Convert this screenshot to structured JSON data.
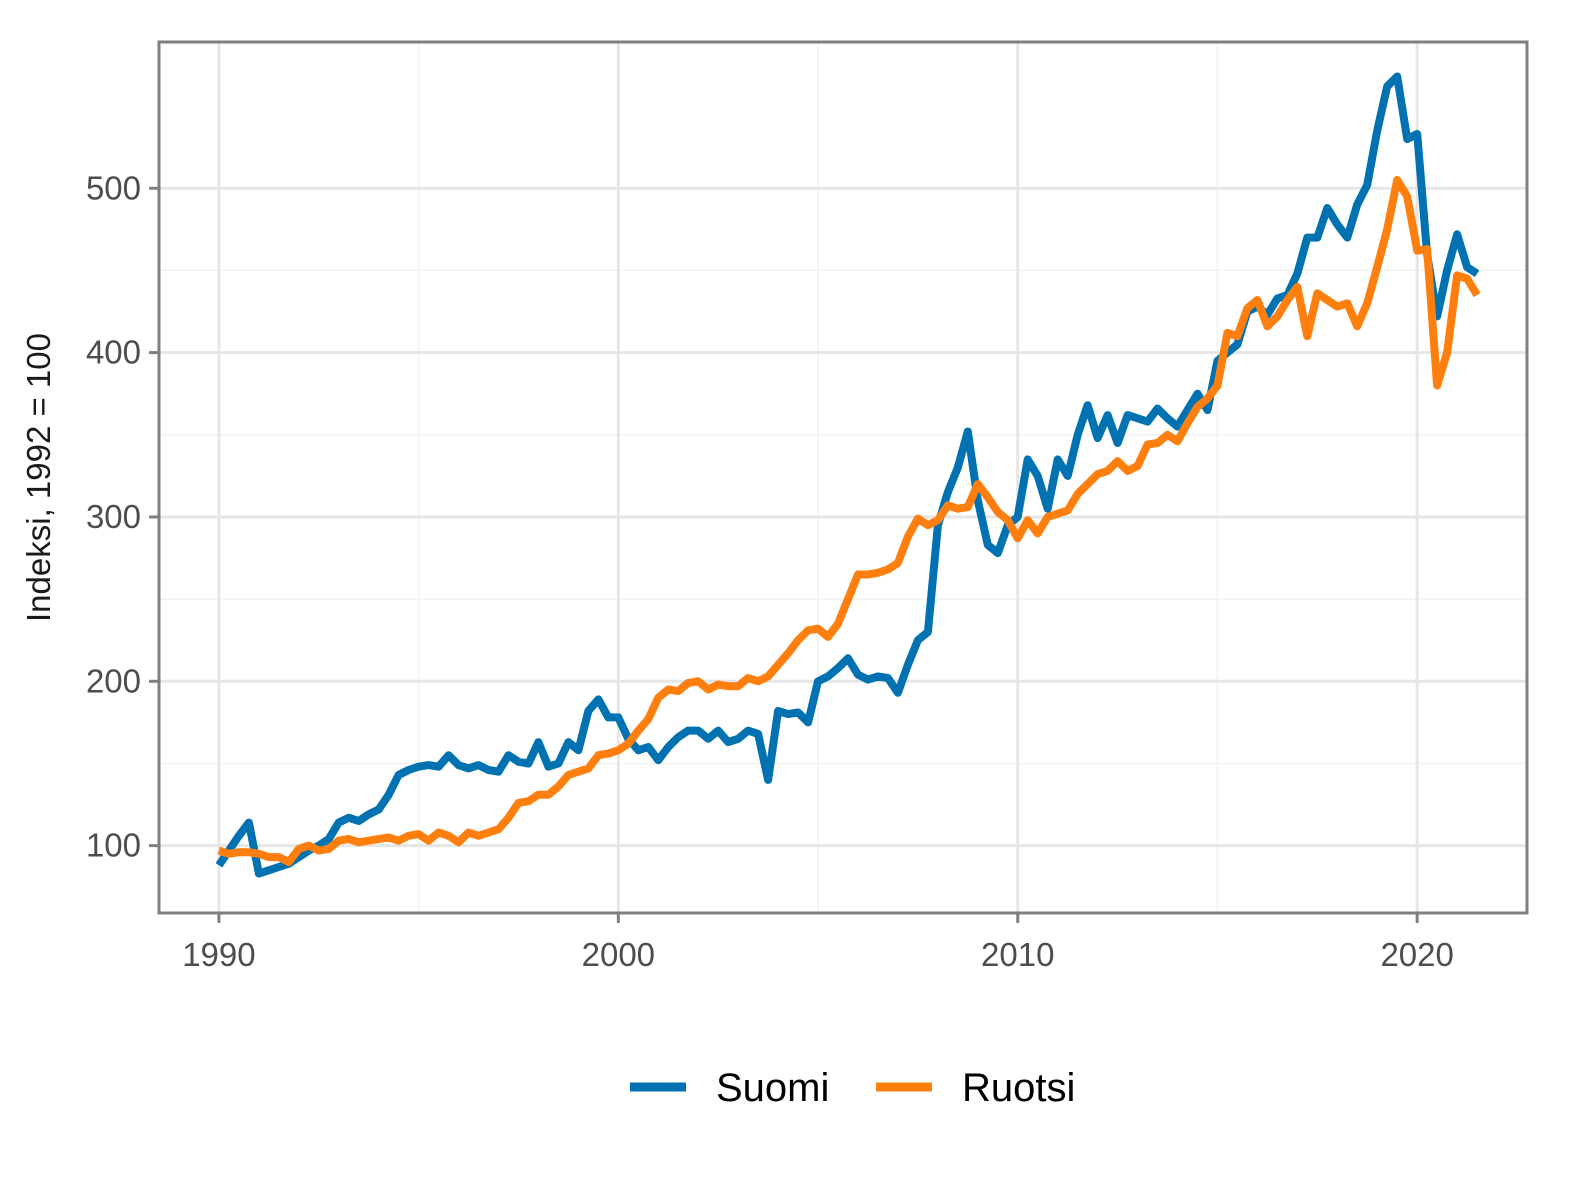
{
  "chart_data": {
    "type": "line",
    "title": "",
    "xlabel": "",
    "ylabel": "Indeksi, 1992 = 100",
    "xlim": [
      1988.5,
      2022.75
    ],
    "ylim": [
      59,
      589
    ],
    "x_ticks": [
      1990,
      2000,
      2010,
      2020
    ],
    "x_tick_labels": [
      "1990",
      "2000",
      "2010",
      "2020"
    ],
    "y_ticks": [
      100,
      200,
      300,
      400,
      500
    ],
    "y_tick_labels": [
      "100",
      "200",
      "300",
      "400",
      "500"
    ],
    "grid": true,
    "legend_position": "bottom",
    "series": [
      {
        "name": "Suomi",
        "color": "#0072B2",
        "points": [
          [
            1990.0,
            88
          ],
          [
            1990.25,
            97
          ],
          [
            1990.5,
            106
          ],
          [
            1990.75,
            114
          ],
          [
            1991.0,
            83
          ],
          [
            1991.25,
            85
          ],
          [
            1991.5,
            87
          ],
          [
            1991.75,
            89
          ],
          [
            1992.0,
            93
          ],
          [
            1992.25,
            97
          ],
          [
            1992.5,
            100
          ],
          [
            1992.75,
            104
          ],
          [
            1993.0,
            114
          ],
          [
            1993.25,
            117
          ],
          [
            1993.5,
            115
          ],
          [
            1993.75,
            119
          ],
          [
            1994.0,
            122
          ],
          [
            1994.25,
            131
          ],
          [
            1994.5,
            143
          ],
          [
            1994.75,
            146
          ],
          [
            1995.0,
            148
          ],
          [
            1995.25,
            149
          ],
          [
            1995.5,
            148
          ],
          [
            1995.75,
            155
          ],
          [
            1996.0,
            149
          ],
          [
            1996.25,
            147
          ],
          [
            1996.5,
            149
          ],
          [
            1996.75,
            146
          ],
          [
            1997.0,
            145
          ],
          [
            1997.25,
            155
          ],
          [
            1997.5,
            151
          ],
          [
            1997.75,
            150
          ],
          [
            1998.0,
            163
          ],
          [
            1998.25,
            148
          ],
          [
            1998.5,
            150
          ],
          [
            1998.75,
            163
          ],
          [
            1999.0,
            158
          ],
          [
            1999.25,
            182
          ],
          [
            1999.5,
            189
          ],
          [
            1999.75,
            178
          ],
          [
            2000.0,
            178
          ],
          [
            2000.25,
            165
          ],
          [
            2000.5,
            158
          ],
          [
            2000.75,
            160
          ],
          [
            2001.0,
            152
          ],
          [
            2001.25,
            160
          ],
          [
            2001.5,
            166
          ],
          [
            2001.75,
            170
          ],
          [
            2002.0,
            170
          ],
          [
            2002.25,
            165
          ],
          [
            2002.5,
            170
          ],
          [
            2002.75,
            163
          ],
          [
            2003.0,
            165
          ],
          [
            2003.25,
            170
          ],
          [
            2003.5,
            168
          ],
          [
            2003.75,
            140
          ],
          [
            2004.0,
            182
          ],
          [
            2004.25,
            180
          ],
          [
            2004.5,
            181
          ],
          [
            2004.75,
            175
          ],
          [
            2005.0,
            200
          ],
          [
            2005.25,
            203
          ],
          [
            2005.5,
            208
          ],
          [
            2005.75,
            214
          ],
          [
            2006.0,
            204
          ],
          [
            2006.25,
            201
          ],
          [
            2006.5,
            203
          ],
          [
            2006.75,
            202
          ],
          [
            2007.0,
            193
          ],
          [
            2007.25,
            210
          ],
          [
            2007.5,
            225
          ],
          [
            2007.75,
            230
          ],
          [
            2008.0,
            295
          ],
          [
            2008.25,
            315
          ],
          [
            2008.5,
            330
          ],
          [
            2008.75,
            352
          ],
          [
            2009.0,
            310
          ],
          [
            2009.25,
            283
          ],
          [
            2009.5,
            278
          ],
          [
            2009.75,
            295
          ],
          [
            2010.0,
            300
          ],
          [
            2010.25,
            335
          ],
          [
            2010.5,
            325
          ],
          [
            2010.75,
            305
          ],
          [
            2011.0,
            335
          ],
          [
            2011.25,
            325
          ],
          [
            2011.5,
            350
          ],
          [
            2011.75,
            368
          ],
          [
            2012.0,
            348
          ],
          [
            2012.25,
            362
          ],
          [
            2012.5,
            345
          ],
          [
            2012.75,
            362
          ],
          [
            2013.0,
            360
          ],
          [
            2013.25,
            358
          ],
          [
            2013.5,
            366
          ],
          [
            2013.75,
            360
          ],
          [
            2014.0,
            355
          ],
          [
            2014.25,
            365
          ],
          [
            2014.5,
            375
          ],
          [
            2014.75,
            365
          ],
          [
            2015.0,
            395
          ],
          [
            2015.25,
            400
          ],
          [
            2015.5,
            405
          ],
          [
            2015.75,
            425
          ],
          [
            2016.0,
            428
          ],
          [
            2016.25,
            423
          ],
          [
            2016.5,
            433
          ],
          [
            2016.75,
            435
          ],
          [
            2017.0,
            448
          ],
          [
            2017.25,
            470
          ],
          [
            2017.5,
            470
          ],
          [
            2017.75,
            488
          ],
          [
            2018.0,
            478
          ],
          [
            2018.25,
            470
          ],
          [
            2018.5,
            490
          ],
          [
            2018.75,
            502
          ],
          [
            2019.0,
            535
          ],
          [
            2019.25,
            562
          ],
          [
            2019.5,
            568
          ],
          [
            2019.75,
            530
          ],
          [
            2020.0,
            533
          ],
          [
            2020.25,
            460
          ],
          [
            2020.5,
            422
          ],
          [
            2020.75,
            450
          ],
          [
            2021.0,
            472
          ],
          [
            2021.25,
            452
          ],
          [
            2021.5,
            448
          ]
        ]
      },
      {
        "name": "Ruotsi",
        "color": "#FF7F0E",
        "points": [
          [
            1990.0,
            97
          ],
          [
            1990.25,
            95
          ],
          [
            1990.5,
            96
          ],
          [
            1990.75,
            96
          ],
          [
            1991.0,
            95
          ],
          [
            1991.25,
            93
          ],
          [
            1991.5,
            93
          ],
          [
            1991.75,
            90
          ],
          [
            1992.0,
            98
          ],
          [
            1992.25,
            100
          ],
          [
            1992.5,
            97
          ],
          [
            1992.75,
            98
          ],
          [
            1993.0,
            103
          ],
          [
            1993.25,
            104
          ],
          [
            1993.5,
            102
          ],
          [
            1993.75,
            103
          ],
          [
            1994.0,
            104
          ],
          [
            1994.25,
            105
          ],
          [
            1994.5,
            103
          ],
          [
            1994.75,
            106
          ],
          [
            1995.0,
            107
          ],
          [
            1995.25,
            103
          ],
          [
            1995.5,
            108
          ],
          [
            1995.75,
            106
          ],
          [
            1996.0,
            102
          ],
          [
            1996.25,
            108
          ],
          [
            1996.5,
            106
          ],
          [
            1996.75,
            108
          ],
          [
            1997.0,
            110
          ],
          [
            1997.25,
            117
          ],
          [
            1997.5,
            126
          ],
          [
            1997.75,
            127
          ],
          [
            1998.0,
            131
          ],
          [
            1998.25,
            131
          ],
          [
            1998.5,
            136
          ],
          [
            1998.75,
            143
          ],
          [
            1999.0,
            145
          ],
          [
            1999.25,
            147
          ],
          [
            1999.5,
            155
          ],
          [
            1999.75,
            156
          ],
          [
            2000.0,
            158
          ],
          [
            2000.25,
            162
          ],
          [
            2000.5,
            170
          ],
          [
            2000.75,
            177
          ],
          [
            2001.0,
            190
          ],
          [
            2001.25,
            195
          ],
          [
            2001.5,
            194
          ],
          [
            2001.75,
            199
          ],
          [
            2002.0,
            200
          ],
          [
            2002.25,
            195
          ],
          [
            2002.5,
            198
          ],
          [
            2002.75,
            197
          ],
          [
            2003.0,
            197
          ],
          [
            2003.25,
            202
          ],
          [
            2003.5,
            200
          ],
          [
            2003.75,
            203
          ],
          [
            2004.0,
            210
          ],
          [
            2004.25,
            217
          ],
          [
            2004.5,
            225
          ],
          [
            2004.75,
            231
          ],
          [
            2005.0,
            232
          ],
          [
            2005.25,
            227
          ],
          [
            2005.5,
            235
          ],
          [
            2005.75,
            250
          ],
          [
            2006.0,
            265
          ],
          [
            2006.25,
            265
          ],
          [
            2006.5,
            266
          ],
          [
            2006.75,
            268
          ],
          [
            2007.0,
            272
          ],
          [
            2007.25,
            288
          ],
          [
            2007.5,
            299
          ],
          [
            2007.75,
            295
          ],
          [
            2008.0,
            298
          ],
          [
            2008.25,
            307
          ],
          [
            2008.5,
            305
          ],
          [
            2008.75,
            306
          ],
          [
            2009.0,
            320
          ],
          [
            2009.25,
            312
          ],
          [
            2009.5,
            303
          ],
          [
            2009.75,
            298
          ],
          [
            2010.0,
            287
          ],
          [
            2010.25,
            298
          ],
          [
            2010.5,
            290
          ],
          [
            2010.75,
            300
          ],
          [
            2011.0,
            302
          ],
          [
            2011.25,
            304
          ],
          [
            2011.5,
            314
          ],
          [
            2011.75,
            320
          ],
          [
            2012.0,
            326
          ],
          [
            2012.25,
            328
          ],
          [
            2012.5,
            334
          ],
          [
            2012.75,
            328
          ],
          [
            2013.0,
            331
          ],
          [
            2013.25,
            344
          ],
          [
            2013.5,
            345
          ],
          [
            2013.75,
            350
          ],
          [
            2014.0,
            346
          ],
          [
            2014.25,
            357
          ],
          [
            2014.5,
            367
          ],
          [
            2014.75,
            372
          ],
          [
            2015.0,
            380
          ],
          [
            2015.25,
            412
          ],
          [
            2015.5,
            410
          ],
          [
            2015.75,
            427
          ],
          [
            2016.0,
            432
          ],
          [
            2016.25,
            416
          ],
          [
            2016.5,
            422
          ],
          [
            2016.75,
            432
          ],
          [
            2017.0,
            440
          ],
          [
            2017.25,
            410
          ],
          [
            2017.5,
            436
          ],
          [
            2017.75,
            432
          ],
          [
            2018.0,
            428
          ],
          [
            2018.25,
            430
          ],
          [
            2018.5,
            416
          ],
          [
            2018.75,
            430
          ],
          [
            2019.0,
            452
          ],
          [
            2019.25,
            475
          ],
          [
            2019.5,
            505
          ],
          [
            2019.75,
            495
          ],
          [
            2020.0,
            462
          ],
          [
            2020.25,
            463
          ],
          [
            2020.5,
            380
          ],
          [
            2020.75,
            400
          ],
          [
            2021.0,
            447
          ],
          [
            2021.25,
            445
          ],
          [
            2021.5,
            435
          ]
        ]
      }
    ]
  }
}
